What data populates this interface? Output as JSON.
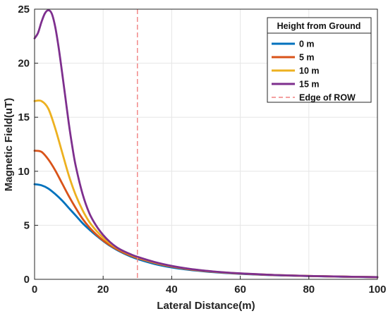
{
  "chart_data": {
    "type": "line",
    "title": "",
    "xlabel": "Lateral Distance(m)",
    "ylabel": "Magnetic Field(uT)",
    "xlim": [
      0,
      100
    ],
    "ylim": [
      0,
      25
    ],
    "xticks": [
      0,
      20,
      40,
      60,
      80,
      100
    ],
    "yticks": [
      0,
      5,
      10,
      15,
      20,
      25
    ],
    "grid": true,
    "legend": {
      "title": "Height from Ground",
      "position": "top-right"
    },
    "series": [
      {
        "name": "0 m",
        "color": "#0072BD",
        "x": [
          0,
          2,
          4,
          6,
          8,
          10,
          12,
          14,
          16,
          18,
          20,
          22,
          24,
          26,
          28,
          30,
          35,
          40,
          45,
          50,
          55,
          60,
          70,
          80,
          90,
          100
        ],
        "y": [
          8.8,
          8.7,
          8.4,
          7.9,
          7.3,
          6.6,
          5.9,
          5.2,
          4.6,
          4.05,
          3.55,
          3.1,
          2.72,
          2.4,
          2.12,
          1.88,
          1.42,
          1.1,
          0.88,
          0.72,
          0.6,
          0.51,
          0.38,
          0.3,
          0.24,
          0.2
        ]
      },
      {
        "name": "5 m",
        "color": "#D95319",
        "x": [
          0,
          2,
          4,
          6,
          8,
          10,
          12,
          14,
          16,
          18,
          20,
          22,
          24,
          26,
          28,
          30,
          35,
          40,
          45,
          50,
          55,
          60,
          70,
          80,
          90,
          100
        ],
        "y": [
          11.9,
          11.8,
          11.1,
          10.1,
          8.9,
          7.7,
          6.6,
          5.6,
          4.8,
          4.15,
          3.6,
          3.15,
          2.78,
          2.46,
          2.2,
          1.97,
          1.52,
          1.18,
          0.93,
          0.76,
          0.63,
          0.53,
          0.39,
          0.31,
          0.25,
          0.2
        ]
      },
      {
        "name": "10 m",
        "color": "#EDB120",
        "x": [
          0,
          2,
          4,
          6,
          8,
          10,
          12,
          14,
          16,
          18,
          20,
          22,
          24,
          26,
          28,
          30,
          35,
          40,
          45,
          50,
          55,
          60,
          70,
          80,
          90,
          100
        ],
        "y": [
          16.5,
          16.5,
          15.8,
          14.0,
          11.8,
          9.6,
          7.8,
          6.4,
          5.3,
          4.5,
          3.85,
          3.32,
          2.9,
          2.56,
          2.28,
          2.04,
          1.56,
          1.22,
          0.96,
          0.78,
          0.64,
          0.54,
          0.4,
          0.31,
          0.25,
          0.2
        ]
      },
      {
        "name": "15 m",
        "color": "#7E2F8E",
        "x": [
          0,
          1,
          2,
          3,
          4,
          5,
          6,
          7,
          8,
          9,
          10,
          11,
          12,
          14,
          16,
          18,
          20,
          22,
          24,
          26,
          28,
          30,
          35,
          40,
          45,
          50,
          55,
          60,
          70,
          80,
          90,
          100
        ],
        "y": [
          22.3,
          22.8,
          23.8,
          24.6,
          24.9,
          24.6,
          23.4,
          21.5,
          19.2,
          16.8,
          14.4,
          12.3,
          10.5,
          7.9,
          6.1,
          4.95,
          4.1,
          3.45,
          2.95,
          2.6,
          2.32,
          2.08,
          1.6,
          1.24,
          0.98,
          0.79,
          0.65,
          0.55,
          0.4,
          0.31,
          0.25,
          0.2
        ]
      }
    ],
    "reference_lines": [
      {
        "name": "Edge of ROW",
        "x": 30,
        "color": "#F08080",
        "style": "dashed"
      }
    ]
  }
}
